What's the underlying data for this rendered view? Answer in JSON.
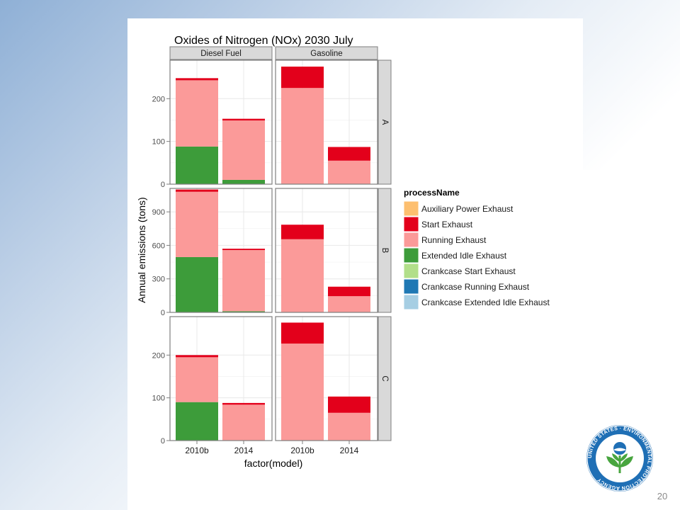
{
  "slide": {
    "page_number": "20"
  },
  "logo": {
    "seal_text": "UNITED STATES · ENVIRONMENTAL PROTECTION AGENCY"
  },
  "colors": {
    "Auxiliary Power Exhaust": "#fdbf6f",
    "Start Exhaust": "#e3001b",
    "Running Exhaust": "#fb9a99",
    "Extended Idle Exhaust": "#3d9c3a",
    "Crankcase Start Exhaust": "#b2df8a",
    "Crankcase Running Exhaust": "#1f78b4",
    "Crankcase Extended Idle Exhaust": "#a6cee3",
    "strip_fill": "#d9d9d9",
    "panel_grid": "#e8e8e8",
    "seal_blue": "#1f6fb5",
    "seal_green": "#48a53f"
  },
  "chart_data": {
    "type": "bar",
    "stacked": true,
    "faceted": true,
    "title": "Oxides of Nitrogen (NOx) 2030 July",
    "xlabel": "factor(model)",
    "ylabel": "Annual emissions (tons)",
    "col_facets": [
      "Diesel Fuel",
      "Gasoline"
    ],
    "row_facets": [
      "A",
      "B",
      "C"
    ],
    "categories": [
      "2010b",
      "2014"
    ],
    "legend": {
      "title": "processName",
      "position": "right",
      "entries": [
        "Auxiliary Power Exhaust",
        "Start Exhaust",
        "Running Exhaust",
        "Extended Idle Exhaust",
        "Crankcase Start Exhaust",
        "Crankcase Running Exhaust",
        "Crankcase Extended Idle Exhaust"
      ]
    },
    "rows": [
      {
        "facet": "A",
        "ylim": [
          0,
          290
        ],
        "yticks": [
          0,
          100,
          200
        ],
        "tick_labels": [
          "0",
          "100",
          "200"
        ],
        "panels": [
          {
            "col": "Diesel Fuel",
            "bars": [
              {
                "category": "2010b",
                "stack": [
                  {
                    "process": "Extended Idle Exhaust",
                    "value": 88
                  },
                  {
                    "process": "Running Exhaust",
                    "value": 155
                  },
                  {
                    "process": "Start Exhaust",
                    "value": 5
                  }
                ]
              },
              {
                "category": "2014",
                "stack": [
                  {
                    "process": "Extended Idle Exhaust",
                    "value": 10
                  },
                  {
                    "process": "Running Exhaust",
                    "value": 139
                  },
                  {
                    "process": "Start Exhaust",
                    "value": 4
                  }
                ]
              }
            ]
          },
          {
            "col": "Gasoline",
            "bars": [
              {
                "category": "2010b",
                "stack": [
                  {
                    "process": "Running Exhaust",
                    "value": 225
                  },
                  {
                    "process": "Start Exhaust",
                    "value": 50
                  }
                ]
              },
              {
                "category": "2014",
                "stack": [
                  {
                    "process": "Running Exhaust",
                    "value": 55
                  },
                  {
                    "process": "Start Exhaust",
                    "value": 32
                  }
                ]
              }
            ]
          }
        ]
      },
      {
        "facet": "B",
        "ylim": [
          0,
          1110
        ],
        "yticks": [
          0,
          300,
          600,
          900
        ],
        "tick_labels": [
          "0",
          "300",
          "600",
          "900"
        ],
        "panels": [
          {
            "col": "Diesel Fuel",
            "bars": [
              {
                "category": "2010b",
                "stack": [
                  {
                    "process": "Extended Idle Exhaust",
                    "value": 495
                  },
                  {
                    "process": "Running Exhaust",
                    "value": 585
                  },
                  {
                    "process": "Start Exhaust",
                    "value": 20
                  }
                ]
              },
              {
                "category": "2014",
                "stack": [
                  {
                    "process": "Extended Idle Exhaust",
                    "value": 10
                  },
                  {
                    "process": "Running Exhaust",
                    "value": 548
                  },
                  {
                    "process": "Start Exhaust",
                    "value": 12
                  }
                ]
              }
            ]
          },
          {
            "col": "Gasoline",
            "bars": [
              {
                "category": "2010b",
                "stack": [
                  {
                    "process": "Running Exhaust",
                    "value": 655
                  },
                  {
                    "process": "Start Exhaust",
                    "value": 130
                  }
                ]
              },
              {
                "category": "2014",
                "stack": [
                  {
                    "process": "Running Exhaust",
                    "value": 145
                  },
                  {
                    "process": "Start Exhaust",
                    "value": 85
                  }
                ]
              }
            ]
          }
        ]
      },
      {
        "facet": "C",
        "ylim": [
          0,
          290
        ],
        "yticks": [
          0,
          100,
          200
        ],
        "tick_labels": [
          "0",
          "100",
          "200"
        ],
        "panels": [
          {
            "col": "Diesel Fuel",
            "bars": [
              {
                "category": "2010b",
                "stack": [
                  {
                    "process": "Extended Idle Exhaust",
                    "value": 90
                  },
                  {
                    "process": "Running Exhaust",
                    "value": 105
                  },
                  {
                    "process": "Start Exhaust",
                    "value": 5
                  }
                ]
              },
              {
                "category": "2014",
                "stack": [
                  {
                    "process": "Running Exhaust",
                    "value": 84
                  },
                  {
                    "process": "Start Exhaust",
                    "value": 4
                  }
                ]
              }
            ]
          },
          {
            "col": "Gasoline",
            "bars": [
              {
                "category": "2010b",
                "stack": [
                  {
                    "process": "Running Exhaust",
                    "value": 227
                  },
                  {
                    "process": "Start Exhaust",
                    "value": 49
                  }
                ]
              },
              {
                "category": "2014",
                "stack": [
                  {
                    "process": "Running Exhaust",
                    "value": 65
                  },
                  {
                    "process": "Start Exhaust",
                    "value": 38
                  }
                ]
              }
            ]
          }
        ]
      }
    ]
  }
}
